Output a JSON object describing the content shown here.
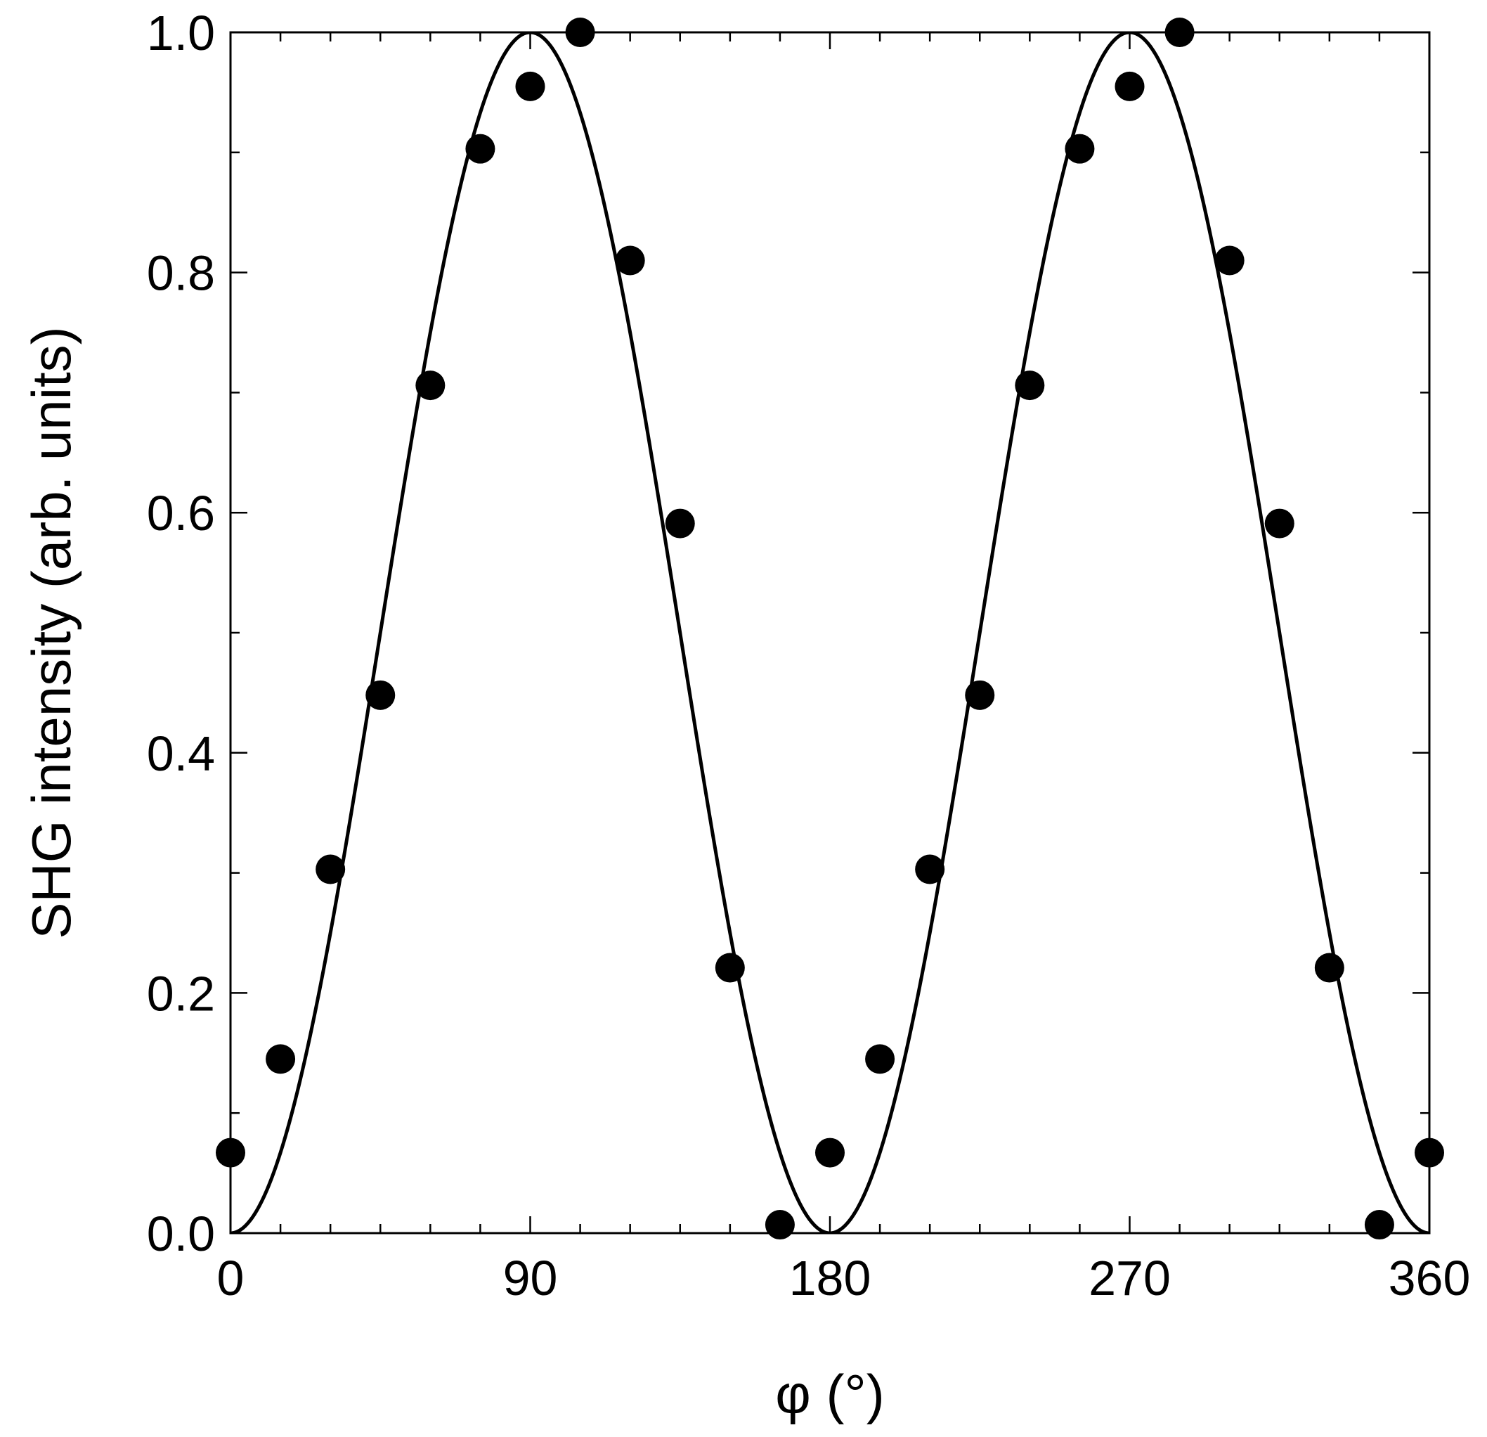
{
  "chart_data": {
    "type": "scatter",
    "title": "",
    "xlabel": "φ (°)",
    "ylabel": "SHG intensity (arb. units)",
    "xlim": [
      0,
      360
    ],
    "ylim": [
      0,
      1
    ],
    "x_ticks": [
      0,
      90,
      180,
      270,
      360
    ],
    "x_tick_labels": [
      "0",
      "90",
      "180",
      "270",
      "360"
    ],
    "x_minor_ticks": [
      15,
      30,
      45,
      60,
      75,
      105,
      120,
      135,
      150,
      165,
      195,
      210,
      225,
      240,
      255,
      285,
      300,
      315,
      330,
      345
    ],
    "y_ticks": [
      0,
      0.2,
      0.4,
      0.6,
      0.8,
      1.0
    ],
    "y_tick_labels": [
      "0.0",
      "0.2",
      "0.4",
      "0.6",
      "0.8",
      "1.0"
    ],
    "y_minor_ticks": [
      0.1,
      0.3,
      0.5,
      0.7,
      0.9
    ],
    "grid": false,
    "series": [
      {
        "kind": "points",
        "marker": "filled-circle",
        "color": "#000000",
        "x": [
          0,
          15,
          30,
          45,
          60,
          75,
          90,
          105,
          120,
          135,
          150,
          165,
          180,
          195,
          210,
          225,
          240,
          255,
          270,
          285,
          300,
          315,
          330,
          345,
          360
        ],
        "y": [
          0.067,
          0.145,
          0.303,
          0.448,
          0.706,
          0.903,
          0.955,
          1.0,
          0.81,
          0.591,
          0.221,
          0.007,
          0.067,
          0.145,
          0.303,
          0.448,
          0.706,
          0.903,
          0.955,
          1.0,
          0.81,
          0.591,
          0.221,
          0.007,
          0.067
        ]
      },
      {
        "kind": "line",
        "color": "#000000",
        "function": "sin^2(φ)",
        "x": [
          0,
          7.5,
          15,
          22.5,
          30,
          37.5,
          45,
          52.5,
          60,
          67.5,
          75,
          82.5,
          90,
          97.5,
          105,
          112.5,
          120,
          127.5,
          135,
          142.5,
          150,
          157.5,
          165,
          172.5,
          180,
          187.5,
          195,
          202.5,
          210,
          217.5,
          225,
          232.5,
          240,
          247.5,
          255,
          262.5,
          270,
          277.5,
          285,
          292.5,
          300,
          307.5,
          315,
          322.5,
          330,
          337.5,
          345,
          352.5,
          360
        ],
        "y": [
          0,
          0.017,
          0.067,
          0.146,
          0.25,
          0.371,
          0.5,
          0.629,
          0.75,
          0.854,
          0.933,
          0.983,
          1.0,
          0.983,
          0.933,
          0.854,
          0.75,
          0.629,
          0.5,
          0.371,
          0.25,
          0.146,
          0.067,
          0.017,
          0,
          0.017,
          0.067,
          0.146,
          0.25,
          0.371,
          0.5,
          0.629,
          0.75,
          0.854,
          0.933,
          0.983,
          1.0,
          0.983,
          0.933,
          0.854,
          0.75,
          0.629,
          0.5,
          0.371,
          0.25,
          0.146,
          0.067,
          0.017,
          0
        ]
      }
    ]
  }
}
